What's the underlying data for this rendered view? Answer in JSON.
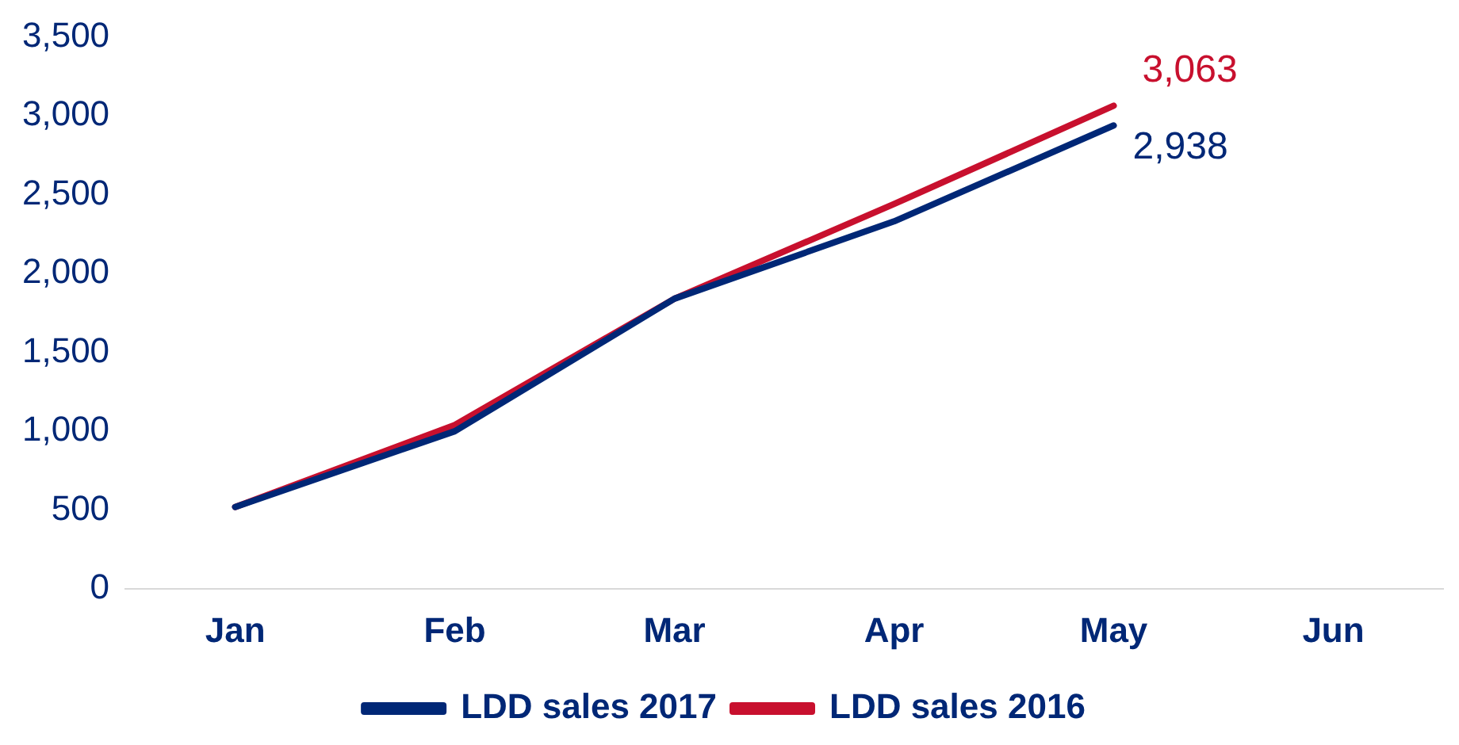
{
  "chart_data": {
    "type": "line",
    "categories": [
      "Jan",
      "Feb",
      "Mar",
      "Apr",
      "May",
      "Jun"
    ],
    "series": [
      {
        "name": "LDD sales 2017",
        "color": "#002776",
        "values": [
          520,
          1000,
          1840,
          2330,
          2938,
          null
        ],
        "value_labels": [
          null,
          null,
          null,
          null,
          "2,938",
          null
        ]
      },
      {
        "name": "LDD sales 2016",
        "color": "#c8102e",
        "values": [
          520,
          1040,
          1840,
          2440,
          3063,
          null
        ],
        "value_labels": [
          null,
          null,
          null,
          null,
          "3,063",
          null
        ]
      }
    ],
    "ylim": [
      0,
      3500
    ],
    "yticks": [
      0,
      500,
      {
        "value": 1000,
        "label": "1,000"
      },
      {
        "value": 1500,
        "label": "1,500"
      },
      {
        "value": 2000,
        "label": "2,000"
      },
      {
        "value": 2500,
        "label": "2,500"
      },
      {
        "value": 3000,
        "label": "3,000"
      },
      {
        "value": 3500,
        "label": "3,500"
      }
    ],
    "grid": false,
    "legend": "bottom",
    "marker": "none",
    "line_style": "solid"
  }
}
